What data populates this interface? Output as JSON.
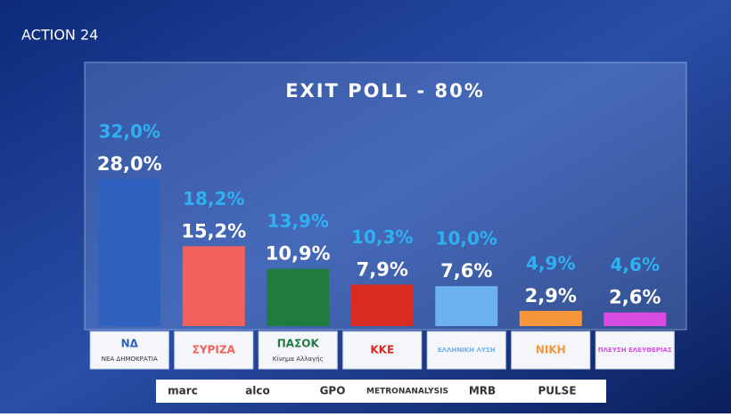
{
  "header": {
    "brand": "ACTION 24"
  },
  "chart_data": {
    "type": "bar",
    "title": "EXIT POLL - 80%",
    "categories": [
      "ΝΔ",
      "ΣΥΡΙΖΑ",
      "ΠΑΣΟΚ",
      "ΚΚΕ",
      "ΕΛΛΗΝΙΚΗ ΛΥΣΗ",
      "ΝΙΚΗ",
      "ΠΛΕΥΣΗ ΕΛΕΥΘΕΡΙΑΣ"
    ],
    "category_notes": [
      "ΝΕΑ ΔΗΜΟΚΡΑΤΙΑ",
      null,
      "Κίνημα Αλλαγής",
      null,
      null,
      null,
      null
    ],
    "series": [
      {
        "colors": [
          "#2f62bf",
          "#f2625a",
          "#1f7b40",
          "#d92b22",
          "#6cb2f0",
          "#f7963b",
          "#d94ce2"
        ],
        "values": [
          28.0,
          15.2,
          10.9,
          7.9,
          7.6,
          2.9,
          2.6
        ],
        "value_labels": [
          "28,0%",
          "15,2%",
          "10,9%",
          "7,9%",
          "7,6%",
          "2,9%",
          "2,6%"
        ],
        "color": "#ffffff"
      },
      {
        "values": [
          32.0,
          18.2,
          13.9,
          10.3,
          10.0,
          4.9,
          4.6
        ],
        "value_labels": [
          "32,0%",
          "18,2%",
          "13,9%",
          "10,3%",
          "10,0%",
          "4,9%",
          "4,6%"
        ],
        "color": "#2fb0f0"
      }
    ]
  },
  "footer": {
    "pollsters": [
      "marc",
      "alco",
      "GPO",
      "METRONANALYSIS",
      "MRB",
      "PULSE"
    ]
  }
}
